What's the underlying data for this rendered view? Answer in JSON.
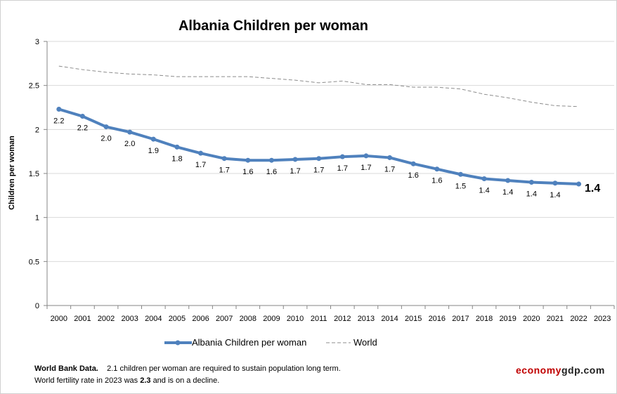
{
  "chart_data": {
    "type": "line",
    "title": "Albania Children per woman",
    "ylabel": "Children per woman",
    "xlabel": "",
    "ylim": [
      0,
      3
    ],
    "yticks": [
      "0",
      "0.5",
      "1",
      "1.5",
      "2",
      "2.5",
      "3"
    ],
    "categories": [
      "2000",
      "2001",
      "2002",
      "2003",
      "2004",
      "2005",
      "2006",
      "2007",
      "2008",
      "2009",
      "2010",
      "2011",
      "2012",
      "2013",
      "2014",
      "2015",
      "2016",
      "2017",
      "2018",
      "2019",
      "2020",
      "2021",
      "2022",
      "2023"
    ],
    "grid": true,
    "legend_position": "bottom",
    "series": [
      {
        "name": "Albania Children per woman",
        "color": "#4f81bd",
        "values": [
          2.23,
          2.15,
          2.03,
          1.97,
          1.89,
          1.8,
          1.73,
          1.67,
          1.65,
          1.65,
          1.66,
          1.67,
          1.69,
          1.7,
          1.68,
          1.61,
          1.55,
          1.49,
          1.44,
          1.42,
          1.4,
          1.39,
          1.38,
          null
        ],
        "labels": [
          "2.2",
          "2.2",
          "2.0",
          "2.0",
          "1.9",
          "1.8",
          "1.7",
          "1.7",
          "1.6",
          "1.6",
          "1.7",
          "1.7",
          "1.7",
          "1.7",
          "1.7",
          "1.6",
          "1.6",
          "1.5",
          "1.4",
          "1.4",
          "1.4",
          "1.4",
          "1.4",
          ""
        ]
      },
      {
        "name": "World",
        "color": "#8c8c8c",
        "values": [
          2.72,
          2.68,
          2.65,
          2.63,
          2.62,
          2.6,
          2.6,
          2.6,
          2.6,
          2.58,
          2.56,
          2.53,
          2.55,
          2.51,
          2.51,
          2.48,
          2.48,
          2.46,
          2.4,
          2.36,
          2.31,
          2.27,
          2.26,
          null
        ]
      }
    ],
    "annotations": {
      "last_value": "1.4"
    }
  },
  "footnote": {
    "source": "World Bank Data.",
    "line1_pre": "2.1 children per woman are required to sustain population long term.",
    "line2_pre": "World fertility rate in 2023 was",
    "line2_value": "2.3",
    "line2_post": "and is on a decline."
  },
  "brand": {
    "part1": "economy",
    "part2": "gdp.com",
    "color1": "#c00000",
    "color2": "#1f1f1f"
  }
}
